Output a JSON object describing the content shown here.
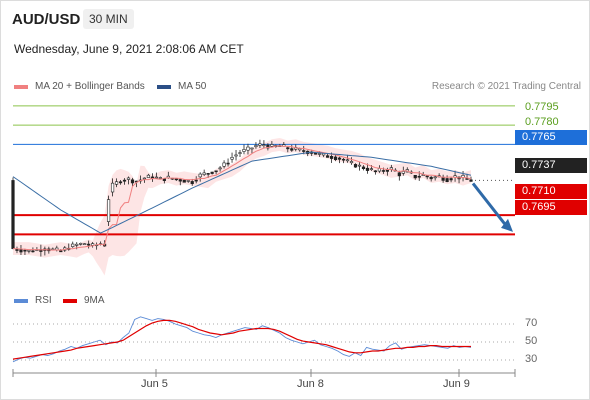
{
  "header": {
    "pair": "AUD/USD",
    "timeframe": "30 MIN",
    "datetime": "Wednesday, June 9, 2021 2:08:06 AM CET"
  },
  "legend": {
    "ma20_label": "MA 20 + Bollinger Bands",
    "ma50_label": "MA 50",
    "credit": "Research © 2021 Trading Central"
  },
  "rsi_legend": {
    "rsi_label": "RSI",
    "ma_label": "9MA"
  },
  "colors": {
    "ma20": "#f08080",
    "ma50": "#3a6ea5",
    "support": "#e00000",
    "resistance_green": "#8bc34a",
    "resistance_blue": "#1e6fd9",
    "last_price_bg": "#222222",
    "rsi": "#5b8bd6",
    "rsi_ma": "#e00000",
    "arrow": "#2f6aa8",
    "band_fill": "#fde0e0"
  },
  "chart_data": [
    {
      "type": "candlestick",
      "title": "AUD/USD 30 MIN",
      "x_ticks": [
        "Jun 5",
        "Jun 8",
        "Jun 9"
      ],
      "last_price": 0.7737,
      "ylim": [
        0.7665,
        0.7805
      ],
      "levels": [
        {
          "label": "0.7795",
          "value": 0.7795,
          "kind": "resistance"
        },
        {
          "label": "0.7780",
          "value": 0.778,
          "kind": "resistance"
        },
        {
          "label": "0.7765",
          "value": 0.7765,
          "kind": "pivot"
        },
        {
          "label": "0.7737",
          "value": 0.7737,
          "kind": "last"
        },
        {
          "label": "0.7710",
          "value": 0.771,
          "kind": "support"
        },
        {
          "label": "0.7695",
          "value": 0.7695,
          "kind": "support"
        }
      ],
      "price_path": [
        [
          0,
          0.7684
        ],
        [
          2,
          0.7683
        ],
        [
          4,
          0.7682
        ],
        [
          6,
          0.7683
        ],
        [
          8,
          0.7684
        ],
        [
          10,
          0.7683
        ],
        [
          12,
          0.7682
        ],
        [
          14,
          0.7685
        ],
        [
          16,
          0.7687
        ],
        [
          18,
          0.7688
        ],
        [
          20,
          0.7686
        ],
        [
          22,
          0.7688
        ],
        [
          23,
          0.7687
        ],
        [
          24,
          0.7723
        ],
        [
          25,
          0.7733
        ],
        [
          27,
          0.7737
        ],
        [
          29,
          0.7738
        ],
        [
          31,
          0.7736
        ],
        [
          33,
          0.7739
        ],
        [
          35,
          0.774
        ],
        [
          37,
          0.7738
        ],
        [
          39,
          0.7739
        ],
        [
          41,
          0.7738
        ],
        [
          43,
          0.7737
        ],
        [
          45,
          0.7736
        ],
        [
          47,
          0.7741
        ],
        [
          49,
          0.7743
        ],
        [
          51,
          0.7745
        ],
        [
          53,
          0.7749
        ],
        [
          55,
          0.7755
        ],
        [
          57,
          0.7759
        ],
        [
          59,
          0.7761
        ],
        [
          61,
          0.7764
        ],
        [
          63,
          0.7765
        ],
        [
          65,
          0.7763
        ],
        [
          67,
          0.7764
        ],
        [
          69,
          0.7762
        ],
        [
          71,
          0.7761
        ],
        [
          73,
          0.776
        ],
        [
          75,
          0.7759
        ],
        [
          77,
          0.7757
        ],
        [
          79,
          0.7756
        ],
        [
          81,
          0.7755
        ],
        [
          83,
          0.7753
        ],
        [
          85,
          0.775
        ],
        [
          87,
          0.7748
        ],
        [
          89,
          0.7746
        ],
        [
          91,
          0.7744
        ],
        [
          93,
          0.7745
        ],
        [
          95,
          0.7746
        ],
        [
          97,
          0.7742
        ],
        [
          99,
          0.7744
        ],
        [
          101,
          0.774
        ],
        [
          103,
          0.7741
        ],
        [
          105,
          0.7739
        ],
        [
          107,
          0.774
        ],
        [
          109,
          0.7738
        ],
        [
          111,
          0.774
        ],
        [
          113,
          0.7739
        ],
        [
          115,
          0.7737
        ]
      ],
      "ma50_path": [
        [
          0,
          0.774
        ],
        [
          12,
          0.7714
        ],
        [
          22,
          0.7696
        ],
        [
          30,
          0.7708
        ],
        [
          45,
          0.7731
        ],
        [
          60,
          0.7752
        ],
        [
          75,
          0.7759
        ],
        [
          90,
          0.7755
        ],
        [
          105,
          0.7748
        ],
        [
          115,
          0.7741
        ]
      ]
    },
    {
      "type": "line",
      "title": "RSI",
      "y_ticks": [
        30,
        50,
        70
      ],
      "ylim": [
        20,
        80
      ],
      "series": [
        {
          "name": "RSI",
          "values": [
            28,
            31,
            33,
            32,
            34,
            36,
            35,
            37,
            40,
            42,
            45,
            43,
            46,
            48,
            50,
            52,
            47,
            50,
            49,
            55,
            60,
            75,
            78,
            76,
            74,
            76,
            75,
            73,
            70,
            68,
            66,
            62,
            60,
            58,
            57,
            55,
            58,
            60,
            62,
            64,
            66,
            65,
            64,
            68,
            66,
            63,
            60,
            55,
            52,
            50,
            48,
            50,
            52,
            47,
            45,
            43,
            40,
            36,
            34,
            38,
            35,
            44,
            42,
            41,
            40,
            46,
            49,
            42,
            44,
            45,
            46,
            47,
            46,
            45,
            44,
            43,
            46,
            44,
            45,
            44
          ]
        },
        {
          "name": "9MA",
          "values": [
            31,
            32,
            33,
            34,
            35,
            36,
            37,
            38,
            39,
            40,
            41,
            43,
            44,
            45,
            46,
            47,
            48,
            49,
            50,
            52,
            56,
            60,
            64,
            68,
            71,
            73,
            74,
            74,
            73,
            71,
            69,
            67,
            64,
            62,
            60,
            59,
            58,
            59,
            60,
            62,
            63,
            64,
            65,
            65,
            65,
            64,
            62,
            59,
            56,
            53,
            51,
            50,
            49,
            48,
            47,
            45,
            43,
            41,
            39,
            38,
            38,
            39,
            40,
            40,
            41,
            42,
            43,
            43,
            44,
            44,
            45,
            45,
            46,
            46,
            45,
            45,
            45,
            45,
            45,
            45
          ]
        }
      ]
    }
  ]
}
